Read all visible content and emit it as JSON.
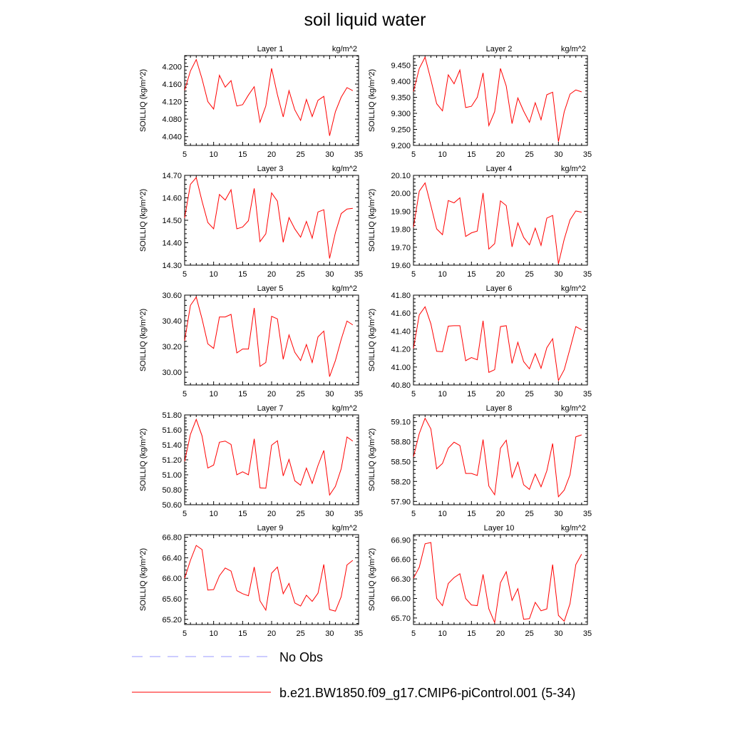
{
  "title": "soil liquid water",
  "legend": [
    {
      "label": "No Obs",
      "color": "#9999ff",
      "dash": true
    },
    {
      "label": "b.e21.BW1850.f09_g17.CMIP6-piControl.001 (5-34)",
      "color": "#ff0000",
      "dash": false
    }
  ],
  "chart_data": [
    {
      "type": "line",
      "title": "Layer 1",
      "units": "kg/m^2",
      "ylabel": "SOILLIQ  (kg/m^2)",
      "x": [
        5,
        6,
        7,
        8,
        9,
        10,
        11,
        12,
        13,
        14,
        15,
        16,
        17,
        18,
        19,
        20,
        21,
        22,
        23,
        24,
        25,
        26,
        27,
        28,
        29,
        30,
        31,
        32,
        33,
        34
      ],
      "xlim": [
        5,
        35
      ],
      "xticks": [
        5,
        10,
        15,
        20,
        25,
        30,
        35
      ],
      "ylim": [
        4.02,
        4.225
      ],
      "yticks": [
        4.04,
        4.08,
        4.12,
        4.16,
        4.2
      ],
      "ytick_labels": [
        "4.040",
        "4.080",
        "4.120",
        "4.160",
        "4.200"
      ],
      "series": [
        {
          "values": [
            4.146,
            4.19,
            4.216,
            4.172,
            4.12,
            4.103,
            4.18,
            4.153,
            4.168,
            4.11,
            4.113,
            4.135,
            4.154,
            4.073,
            4.11,
            4.196,
            4.136,
            4.085,
            4.145,
            4.101,
            4.077,
            4.125,
            4.086,
            4.123,
            4.132,
            4.042,
            4.097,
            4.13,
            4.152,
            4.145
          ],
          "color": "#ff0000"
        }
      ]
    },
    {
      "type": "line",
      "title": "Layer 2",
      "units": "kg/m^2",
      "ylabel": "SOILLIQ  (kg/m^2)",
      "x": [
        5,
        6,
        7,
        8,
        9,
        10,
        11,
        12,
        13,
        14,
        15,
        16,
        17,
        18,
        19,
        20,
        21,
        22,
        23,
        24,
        25,
        26,
        27,
        28,
        29,
        30,
        31,
        32,
        33,
        34
      ],
      "xlim": [
        5,
        35
      ],
      "xticks": [
        5,
        10,
        15,
        20,
        25,
        30,
        35
      ],
      "ylim": [
        9.2,
        9.48
      ],
      "yticks": [
        9.2,
        9.25,
        9.3,
        9.35,
        9.4,
        9.45
      ],
      "ytick_labels": [
        "9.200",
        "9.250",
        "9.300",
        "9.350",
        "9.400",
        "9.450"
      ],
      "series": [
        {
          "values": [
            9.368,
            9.44,
            9.475,
            9.405,
            9.33,
            9.308,
            9.42,
            9.392,
            9.435,
            9.318,
            9.322,
            9.35,
            9.426,
            9.262,
            9.305,
            9.44,
            9.385,
            9.268,
            9.348,
            9.307,
            9.272,
            9.333,
            9.28,
            9.358,
            9.366,
            9.212,
            9.305,
            9.36,
            9.373,
            9.367
          ],
          "color": "#ff0000"
        }
      ]
    },
    {
      "type": "line",
      "title": "Layer 3",
      "units": "kg/m^2",
      "ylabel": "SOILLIQ  (kg/m^2)",
      "x": [
        5,
        6,
        7,
        8,
        9,
        10,
        11,
        12,
        13,
        14,
        15,
        16,
        17,
        18,
        19,
        20,
        21,
        22,
        23,
        24,
        25,
        26,
        27,
        28,
        29,
        30,
        31,
        32,
        33,
        34
      ],
      "xlim": [
        5,
        35
      ],
      "xticks": [
        5,
        10,
        15,
        20,
        25,
        30,
        35
      ],
      "ylim": [
        14.3,
        14.7
      ],
      "yticks": [
        14.3,
        14.4,
        14.5,
        14.6,
        14.7
      ],
      "ytick_labels": [
        "14.30",
        "14.40",
        "14.50",
        "14.60",
        "14.70"
      ],
      "series": [
        {
          "values": [
            14.51,
            14.66,
            14.69,
            14.585,
            14.49,
            14.462,
            14.615,
            14.59,
            14.636,
            14.462,
            14.47,
            14.498,
            14.642,
            14.405,
            14.44,
            14.622,
            14.585,
            14.402,
            14.512,
            14.462,
            14.425,
            14.495,
            14.42,
            14.537,
            14.547,
            14.33,
            14.445,
            14.53,
            14.55,
            14.553
          ],
          "color": "#ff0000"
        }
      ]
    },
    {
      "type": "line",
      "title": "Layer 4",
      "units": "kg/m^2",
      "ylabel": "SOILLIQ  (kg/m^2)",
      "x": [
        5,
        6,
        7,
        8,
        9,
        10,
        11,
        12,
        13,
        14,
        15,
        16,
        17,
        18,
        19,
        20,
        21,
        22,
        23,
        24,
        25,
        26,
        27,
        28,
        29,
        30,
        31,
        32,
        33,
        34
      ],
      "xlim": [
        5,
        35
      ],
      "xticks": [
        5,
        10,
        15,
        20,
        25,
        30,
        35
      ],
      "ylim": [
        19.6,
        20.1
      ],
      "yticks": [
        19.6,
        19.7,
        19.8,
        19.9,
        20.0,
        20.1
      ],
      "ytick_labels": [
        "19.60",
        "19.70",
        "19.80",
        "19.90",
        "20.00",
        "20.10"
      ],
      "series": [
        {
          "values": [
            19.812,
            20.012,
            20.058,
            19.932,
            19.802,
            19.77,
            19.96,
            19.947,
            19.975,
            19.76,
            19.78,
            19.79,
            20.002,
            19.69,
            19.72,
            19.958,
            19.932,
            19.702,
            19.835,
            19.755,
            19.713,
            19.806,
            19.71,
            19.862,
            19.877,
            19.608,
            19.745,
            19.852,
            19.902,
            19.895
          ],
          "color": "#ff0000"
        }
      ]
    },
    {
      "type": "line",
      "title": "Layer 5",
      "units": "kg/m^2",
      "ylabel": "SOILLIQ  (kg/m^2)",
      "x": [
        5,
        6,
        7,
        8,
        9,
        10,
        11,
        12,
        13,
        14,
        15,
        16,
        17,
        18,
        19,
        20,
        21,
        22,
        23,
        24,
        25,
        26,
        27,
        28,
        29,
        30,
        31,
        32,
        33,
        34
      ],
      "xlim": [
        5,
        35
      ],
      "xticks": [
        5,
        10,
        15,
        20,
        25,
        30,
        35
      ],
      "ylim": [
        29.9,
        30.6
      ],
      "yticks": [
        30.0,
        30.2,
        30.4,
        30.6
      ],
      "ytick_labels": [
        "30.00",
        "30.20",
        "30.40",
        "30.60"
      ],
      "series": [
        {
          "values": [
            30.245,
            30.52,
            30.585,
            30.415,
            30.22,
            30.185,
            30.43,
            30.43,
            30.45,
            30.15,
            30.18,
            30.18,
            30.5,
            30.045,
            30.075,
            30.435,
            30.415,
            30.1,
            30.29,
            30.155,
            30.09,
            30.215,
            30.075,
            30.275,
            30.32,
            29.965,
            30.09,
            30.255,
            30.398,
            30.368
          ],
          "color": "#ff0000"
        }
      ]
    },
    {
      "type": "line",
      "title": "Layer 6",
      "units": "kg/m^2",
      "ylabel": "SOILLIQ  (kg/m^2)",
      "x": [
        5,
        6,
        7,
        8,
        9,
        10,
        11,
        12,
        13,
        14,
        15,
        16,
        17,
        18,
        19,
        20,
        21,
        22,
        23,
        24,
        25,
        26,
        27,
        28,
        29,
        30,
        31,
        32,
        33,
        34
      ],
      "xlim": [
        5,
        35
      ],
      "xticks": [
        5,
        10,
        15,
        20,
        25,
        30,
        35
      ],
      "ylim": [
        40.8,
        41.8
      ],
      "yticks": [
        40.8,
        41.0,
        41.2,
        41.4,
        41.6,
        41.8
      ],
      "ytick_labels": [
        "40.80",
        "41.00",
        "41.20",
        "41.40",
        "41.60",
        "41.80"
      ],
      "series": [
        {
          "values": [
            41.205,
            41.58,
            41.67,
            41.48,
            41.175,
            41.17,
            41.455,
            41.46,
            41.46,
            41.07,
            41.105,
            41.08,
            41.515,
            40.94,
            40.97,
            41.45,
            41.46,
            41.04,
            41.275,
            41.06,
            40.98,
            41.15,
            40.985,
            41.215,
            41.315,
            40.85,
            40.97,
            41.205,
            41.45,
            41.415
          ],
          "color": "#ff0000"
        }
      ]
    },
    {
      "type": "line",
      "title": "Layer 7",
      "units": "kg/m^2",
      "ylabel": "SOILLIQ  (kg/m^2)",
      "x": [
        5,
        6,
        7,
        8,
        9,
        10,
        11,
        12,
        13,
        14,
        15,
        16,
        17,
        18,
        19,
        20,
        21,
        22,
        23,
        24,
        25,
        26,
        27,
        28,
        29,
        30,
        31,
        32,
        33,
        34
      ],
      "xlim": [
        5,
        35
      ],
      "xticks": [
        5,
        10,
        15,
        20,
        25,
        30,
        35
      ],
      "ylim": [
        50.6,
        51.8
      ],
      "yticks": [
        50.6,
        50.8,
        51.0,
        51.2,
        51.4,
        51.6,
        51.8
      ],
      "ytick_labels": [
        "50.60",
        "50.80",
        "51.00",
        "51.20",
        "51.40",
        "51.60",
        "51.80"
      ],
      "series": [
        {
          "values": [
            51.18,
            51.54,
            51.74,
            51.52,
            51.09,
            51.13,
            51.435,
            51.45,
            51.405,
            51.0,
            51.04,
            51.0,
            51.48,
            50.825,
            50.82,
            51.395,
            51.455,
            50.985,
            51.205,
            50.92,
            50.86,
            51.09,
            50.885,
            51.125,
            51.325,
            50.73,
            50.845,
            51.08,
            51.505,
            51.45
          ],
          "color": "#ff0000"
        }
      ]
    },
    {
      "type": "line",
      "title": "Layer 8",
      "units": "kg/m^2",
      "ylabel": "SOILLIQ  (kg/m^2)",
      "x": [
        5,
        6,
        7,
        8,
        9,
        10,
        11,
        12,
        13,
        14,
        15,
        16,
        17,
        18,
        19,
        20,
        21,
        22,
        23,
        24,
        25,
        26,
        27,
        28,
        29,
        30,
        31,
        32,
        33,
        34
      ],
      "xlim": [
        5,
        35
      ],
      "xticks": [
        5,
        10,
        15,
        20,
        25,
        30,
        35
      ],
      "ylim": [
        57.85,
        59.2
      ],
      "yticks": [
        57.9,
        58.2,
        58.5,
        58.8,
        59.1
      ],
      "ytick_labels": [
        "57.90",
        "58.20",
        "58.50",
        "58.80",
        "59.10"
      ],
      "series": [
        {
          "values": [
            58.57,
            58.92,
            59.15,
            58.99,
            58.39,
            58.47,
            58.7,
            58.79,
            58.74,
            58.32,
            58.32,
            58.29,
            58.83,
            58.13,
            58.0,
            58.7,
            58.82,
            58.26,
            58.49,
            58.15,
            58.08,
            58.31,
            58.12,
            58.36,
            58.77,
            57.97,
            58.07,
            58.3,
            58.87,
            58.9
          ],
          "color": "#ff0000"
        }
      ]
    },
    {
      "type": "line",
      "title": "Layer 9",
      "units": "kg/m^2",
      "ylabel": "SOILLIQ  (kg/m^2)",
      "x": [
        5,
        6,
        7,
        8,
        9,
        10,
        11,
        12,
        13,
        14,
        15,
        16,
        17,
        18,
        19,
        20,
        21,
        22,
        23,
        24,
        25,
        26,
        27,
        28,
        29,
        30,
        31,
        32,
        33,
        34
      ],
      "xlim": [
        5,
        35
      ],
      "xticks": [
        5,
        10,
        15,
        20,
        25,
        30,
        35
      ],
      "ylim": [
        65.1,
        66.85
      ],
      "yticks": [
        65.2,
        65.6,
        66.0,
        66.4,
        66.8
      ],
      "ytick_labels": [
        "65.20",
        "65.60",
        "66.00",
        "66.40",
        "66.80"
      ],
      "series": [
        {
          "values": [
            66.0,
            66.35,
            66.64,
            66.56,
            65.77,
            65.78,
            66.05,
            66.2,
            66.14,
            65.76,
            65.7,
            65.66,
            66.22,
            65.56,
            65.38,
            66.1,
            66.22,
            65.7,
            65.9,
            65.52,
            65.46,
            65.67,
            65.55,
            65.71,
            66.27,
            65.39,
            65.36,
            65.64,
            66.26,
            66.35
          ],
          "color": "#ff0000"
        }
      ]
    },
    {
      "type": "line",
      "title": "Layer 10",
      "units": "kg/m^2",
      "ylabel": "SOILLIQ  (kg/m^2)",
      "x": [
        5,
        6,
        7,
        8,
        9,
        10,
        11,
        12,
        13,
        14,
        15,
        16,
        17,
        18,
        19,
        20,
        21,
        22,
        23,
        24,
        25,
        26,
        27,
        28,
        29,
        30,
        31,
        32,
        33,
        34
      ],
      "xlim": [
        5,
        35
      ],
      "xticks": [
        5,
        10,
        15,
        20,
        25,
        30,
        35
      ],
      "ylim": [
        65.6,
        66.98
      ],
      "yticks": [
        65.7,
        66.0,
        66.3,
        66.6,
        66.9
      ],
      "ytick_labels": [
        "65.70",
        "66.00",
        "66.30",
        "66.60",
        "66.90"
      ],
      "series": [
        {
          "values": [
            66.31,
            66.48,
            66.84,
            66.86,
            66.0,
            65.89,
            66.23,
            66.32,
            66.38,
            66.0,
            65.9,
            65.89,
            66.37,
            65.84,
            65.63,
            66.24,
            66.41,
            65.97,
            66.15,
            65.68,
            65.69,
            65.94,
            65.81,
            65.84,
            66.52,
            65.74,
            65.65,
            65.92,
            66.52,
            66.68
          ],
          "color": "#ff0000"
        }
      ]
    }
  ]
}
